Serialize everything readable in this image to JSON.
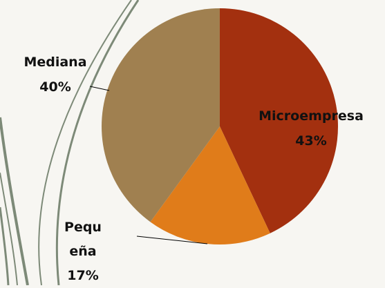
{
  "chart_data": {
    "type": "pie",
    "categories": [
      "Microempresa",
      "Pequeña",
      "Mediana"
    ],
    "values": [
      43,
      17,
      40
    ],
    "value_labels": [
      "43%",
      "17%",
      "40%"
    ],
    "colors": [
      "#a3300f",
      "#e07c1a",
      "#a08050"
    ]
  }
}
